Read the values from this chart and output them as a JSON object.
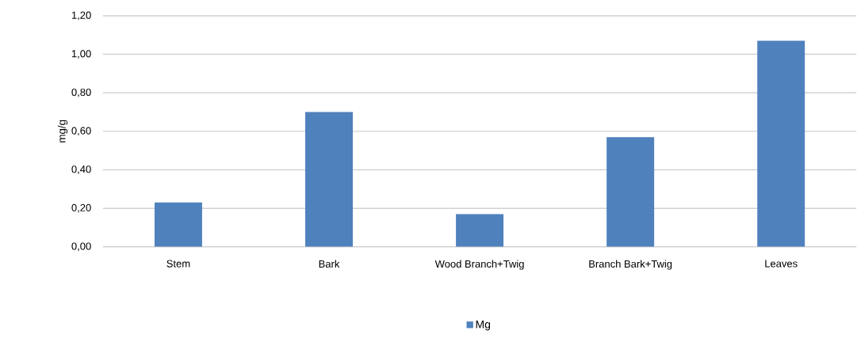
{
  "chart_data": {
    "type": "bar",
    "ylabel": "mg/g",
    "categories": [
      "Stem",
      "Bark",
      "Wood Branch+Twig",
      "Branch Bark+Twig",
      "Leaves"
    ],
    "series": [
      {
        "name": "Mg",
        "color": "#4f81bd",
        "values": [
          0.23,
          0.7,
          0.17,
          0.57,
          1.07
        ]
      }
    ],
    "ylim": [
      0,
      1.2
    ],
    "yticks": [
      {
        "value": 0,
        "label": "0,00"
      },
      {
        "value": 0.2,
        "label": "0,20"
      },
      {
        "value": 0.4,
        "label": "0,40"
      },
      {
        "value": 0.6,
        "label": "0,60"
      },
      {
        "value": 0.8,
        "label": "0,80"
      },
      {
        "value": 1.0,
        "label": "1,00"
      },
      {
        "value": 1.2,
        "label": "1,20"
      }
    ],
    "grid": "y",
    "legend": "bottom"
  }
}
